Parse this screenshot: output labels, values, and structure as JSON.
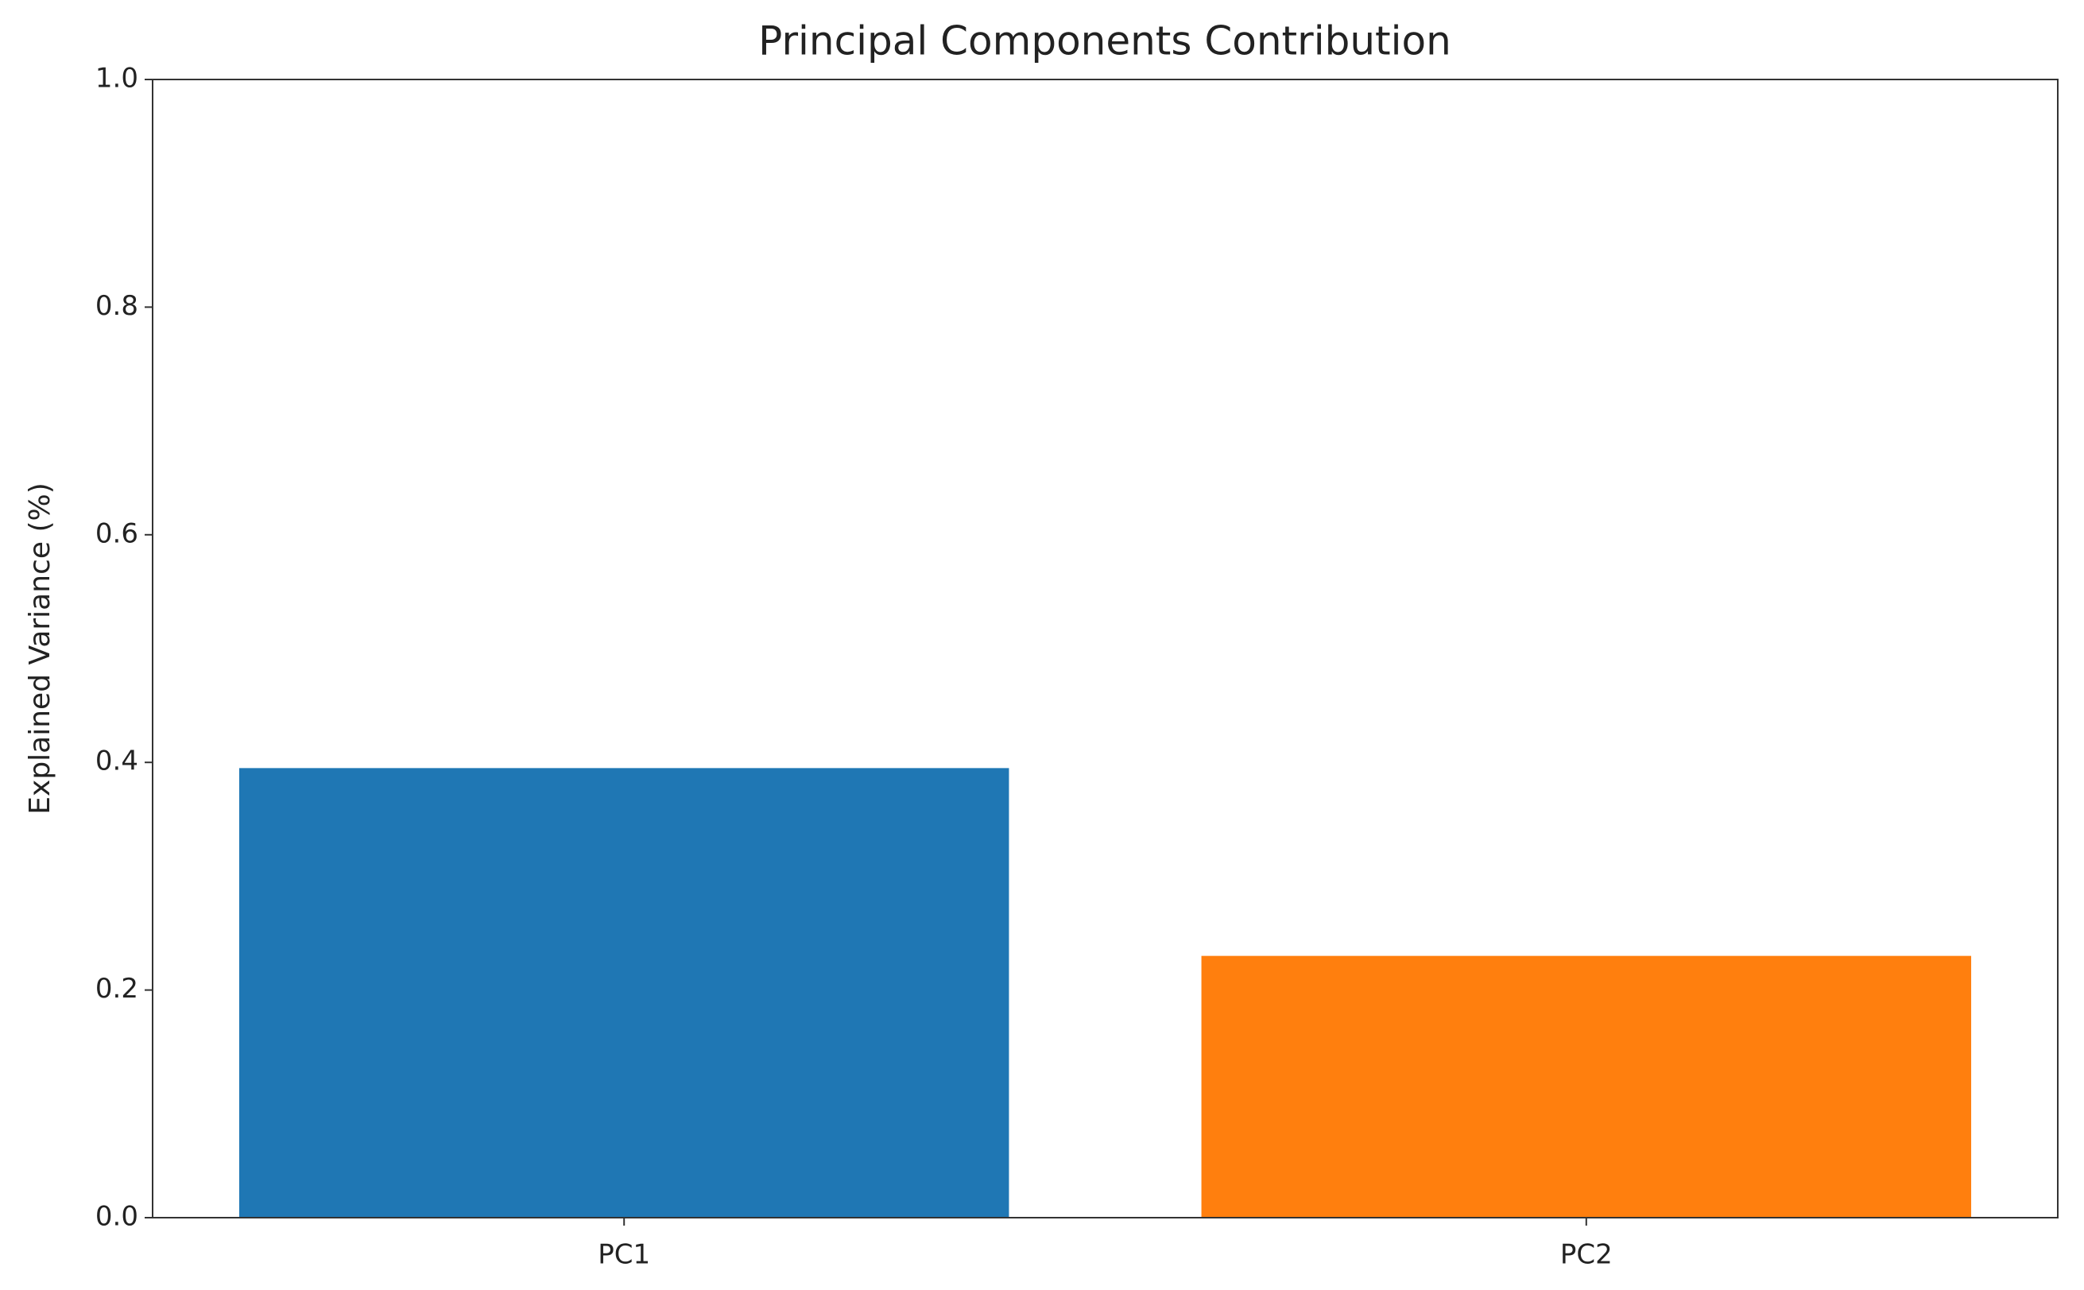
{
  "chart_data": {
    "type": "bar",
    "title": "Principal Components Contribution",
    "y_label": "Explained Variance (%)",
    "categories": [
      "PC1",
      "PC2"
    ],
    "values": [
      0.395,
      0.23
    ],
    "colors": [
      "#1f77b4",
      "#ff7f0e"
    ],
    "ylim": [
      0,
      1
    ],
    "yticks": [
      {
        "value": 0,
        "label": "0.0"
      },
      0.2,
      0.4,
      0.6,
      0.8,
      {
        "value": 1,
        "label": "1.0"
      }
    ],
    "grid": false
  }
}
